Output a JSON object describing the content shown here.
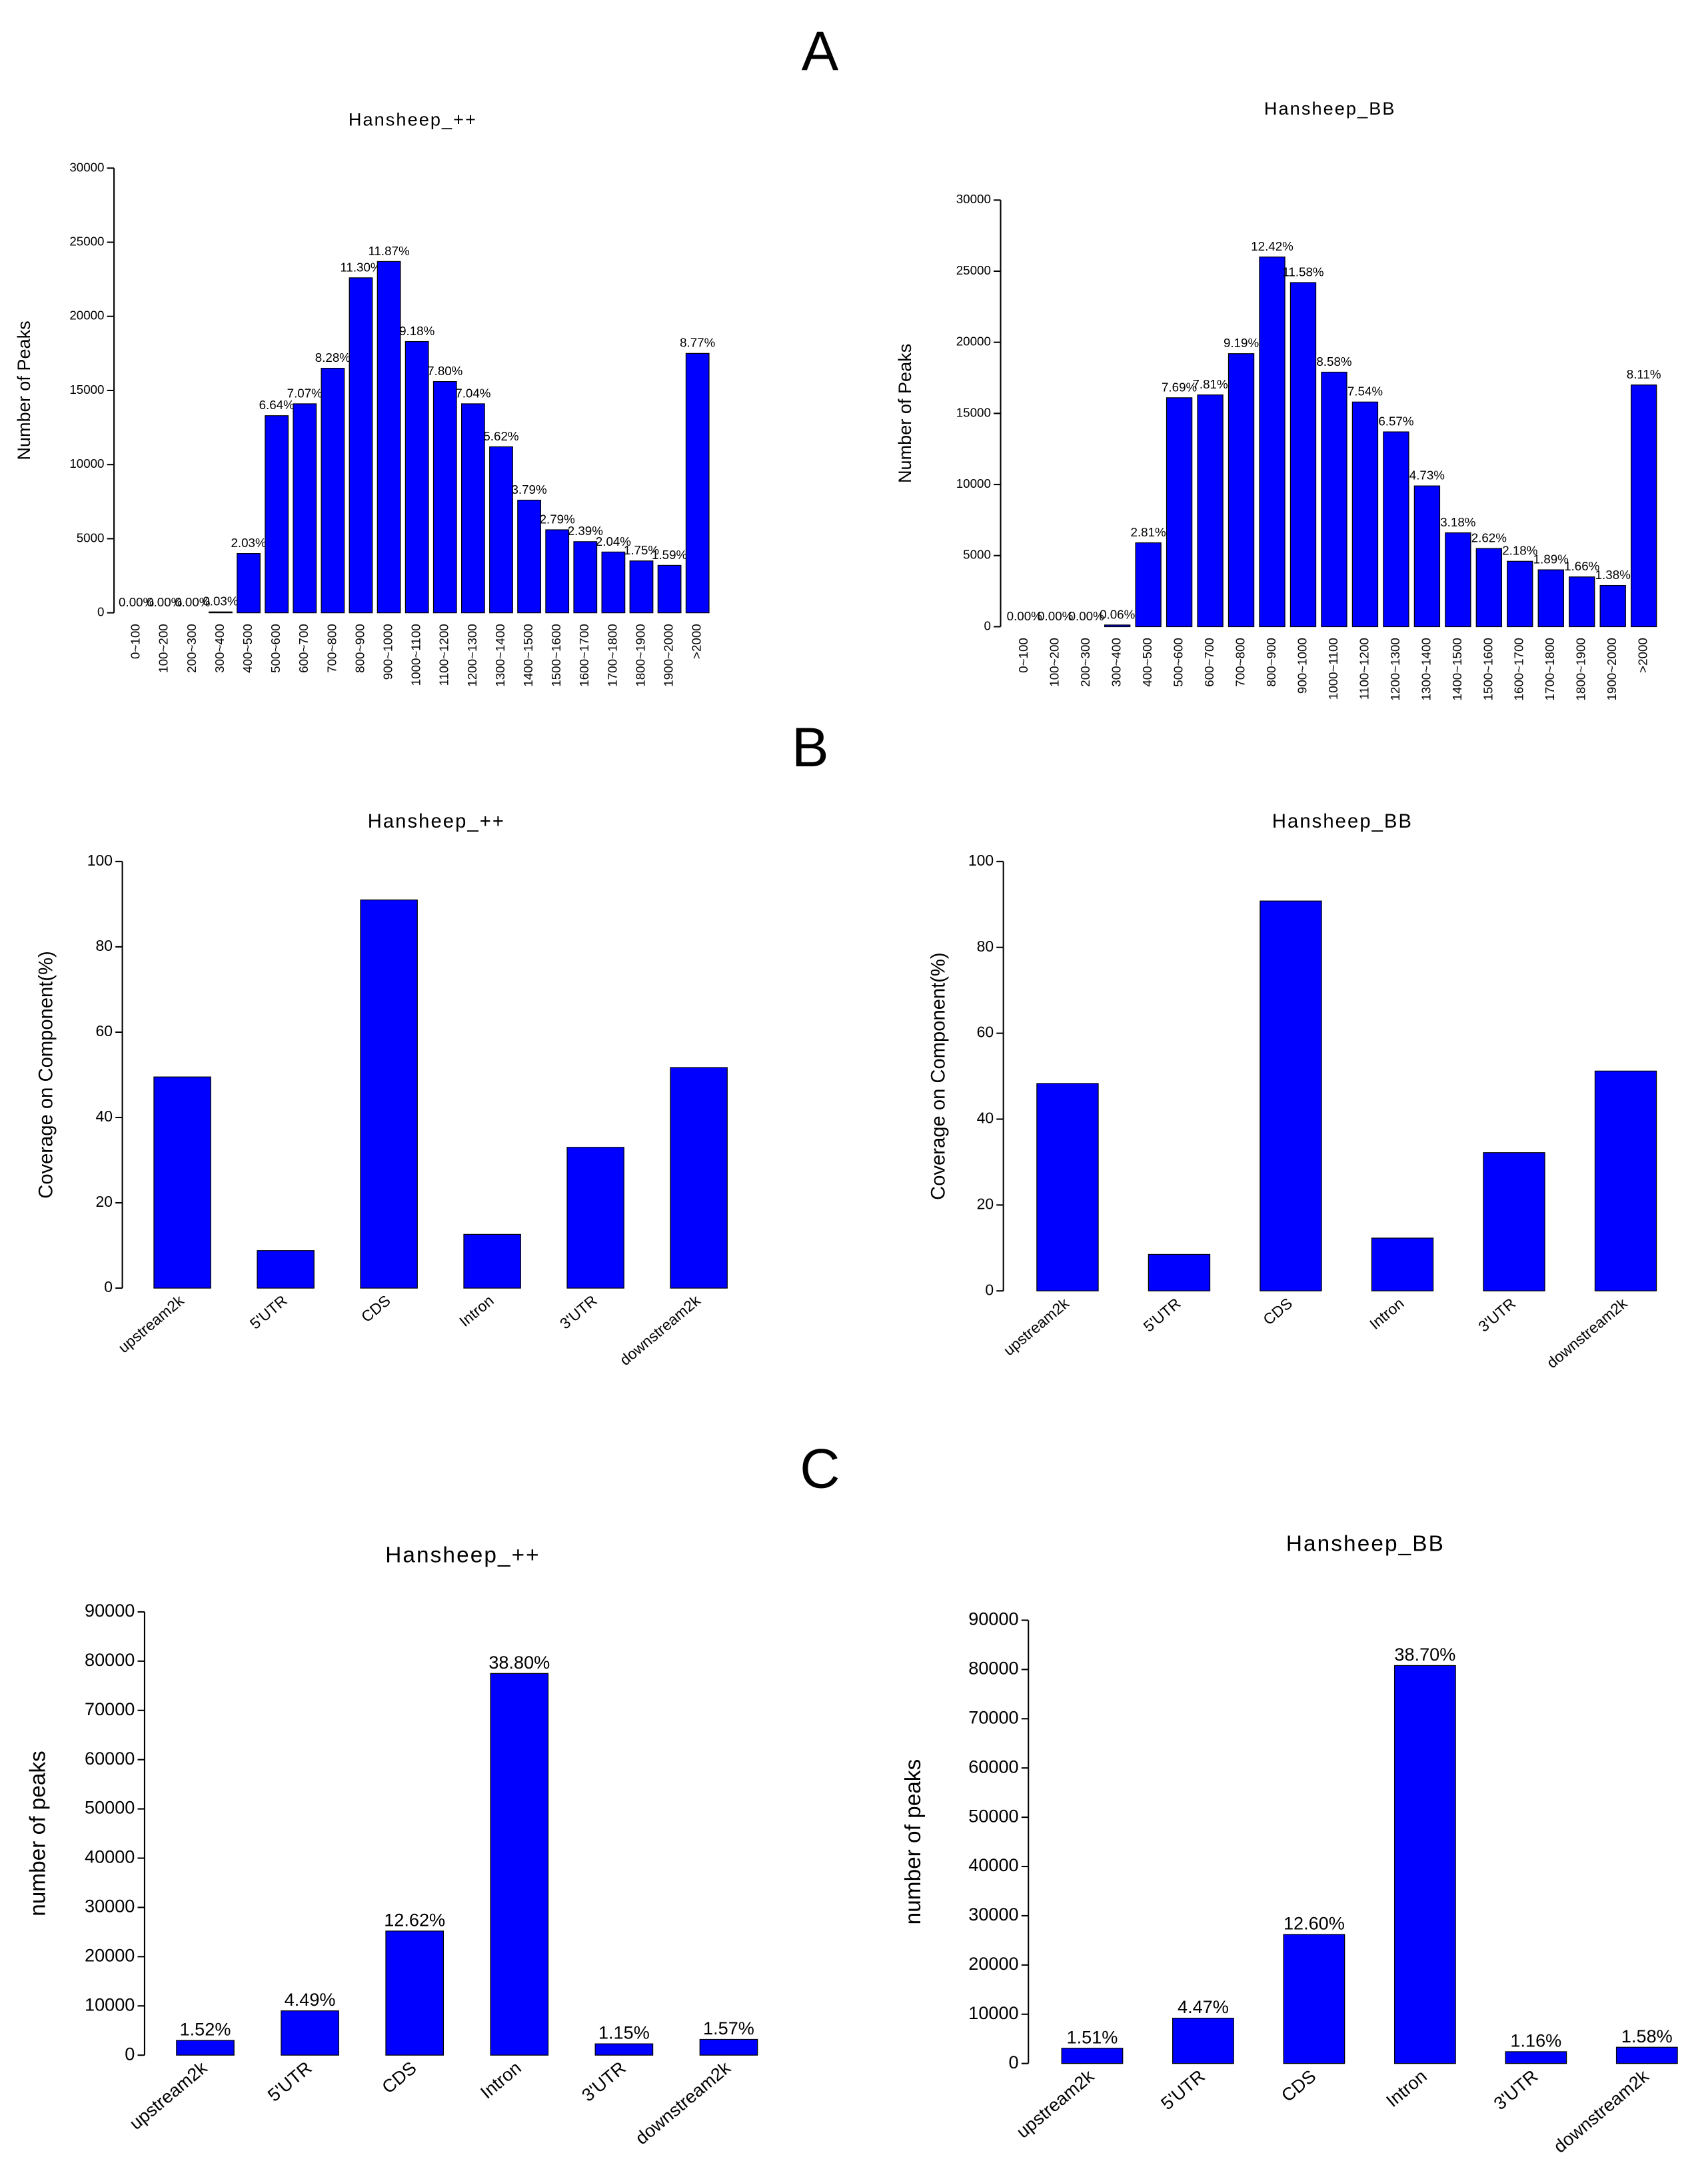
{
  "panel_labels": [
    "A",
    "B",
    "C"
  ],
  "chart_data": [
    {
      "type": "bar",
      "title": "Hansheep_++",
      "y_label": "Number of Peaks",
      "categories": [
        "0~100",
        "100~200",
        "200~300",
        "300~400",
        "400~500",
        "500~600",
        "600~700",
        "700~800",
        "800~900",
        "900~1000",
        "1000~1100",
        "1100~1200",
        "1200~1300",
        "1300~1400",
        "1400~1500",
        "1500~1600",
        "1600~1700",
        "1700~1800",
        "1800~1900",
        "1900~2000",
        ">2000"
      ],
      "values": [
        0,
        0,
        0,
        60,
        4000,
        13300,
        14100,
        16500,
        22600,
        23700,
        18300,
        15600,
        14100,
        11200,
        7600,
        5600,
        4800,
        4100,
        3500,
        3200,
        17500
      ],
      "bar_labels": [
        "0.00%",
        "0.00%",
        "0.00%",
        "0.03%",
        "2.03%",
        "6.64%",
        "7.07%",
        "8.28%",
        "11.30%",
        "11.87%",
        "9.18%",
        "7.80%",
        "7.04%",
        "5.62%",
        "3.79%",
        "2.79%",
        "2.39%",
        "2.04%",
        "1.75%",
        "1.59%",
        "8.77%"
      ],
      "color": "#0000ff",
      "ylim": [
        0,
        30000
      ],
      "yticks": [
        0,
        5000,
        10000,
        15000,
        20000,
        25000,
        30000
      ]
    },
    {
      "type": "bar",
      "title": "Hansheep_BB",
      "y_label": "Number of Peaks",
      "categories": [
        "0~100",
        "100~200",
        "200~300",
        "300~400",
        "400~500",
        "500~600",
        "600~700",
        "700~800",
        "800~900",
        "900~1000",
        "1000~1100",
        "1100~1200",
        "1200~1300",
        "1300~1400",
        "1400~1500",
        "1500~1600",
        "1600~1700",
        "1700~1800",
        "1800~1900",
        "1900~2000",
        ">2000"
      ],
      "values": [
        0,
        0,
        0,
        120,
        5900,
        16100,
        16300,
        19200,
        26000,
        24200,
        17900,
        15800,
        13700,
        9900,
        6600,
        5500,
        4600,
        4000,
        3500,
        2900,
        17000
      ],
      "bar_labels": [
        "0.00%",
        "0.00%",
        "0.00%",
        "0.06%",
        "2.81%",
        "7.69%",
        "7.81%",
        "9.19%",
        "12.42%",
        "11.58%",
        "8.58%",
        "7.54%",
        "6.57%",
        "4.73%",
        "3.18%",
        "2.62%",
        "2.18%",
        "1.89%",
        "1.66%",
        "1.38%",
        "8.11%"
      ],
      "color": "#0000ff",
      "ylim": [
        0,
        30000
      ],
      "yticks": [
        0,
        5000,
        10000,
        15000,
        20000,
        25000,
        30000
      ]
    },
    {
      "type": "bar",
      "title": "Hansheep_++",
      "y_label": "Coverage on Component(%)",
      "categories": [
        "upstream2k",
        "5'UTR",
        "CDS",
        "Intron",
        "3'UTR",
        "downstream2k"
      ],
      "values": [
        49.5,
        8.8,
        91,
        12.6,
        33,
        51.7
      ],
      "color": "#0000ff",
      "ylim": [
        0,
        100
      ],
      "yticks": [
        0,
        20,
        40,
        60,
        80,
        100
      ]
    },
    {
      "type": "bar",
      "title": "Hansheep_BB",
      "y_label": "Coverage on Component(%)",
      "categories": [
        "upstream2k",
        "5'UTR",
        "CDS",
        "Intron",
        "3'UTR",
        "downstream2k"
      ],
      "values": [
        48.3,
        8.5,
        90.8,
        12.3,
        32.2,
        51.2
      ],
      "color": "#0000ff",
      "ylim": [
        0,
        100
      ],
      "yticks": [
        0,
        20,
        40,
        60,
        80,
        100
      ]
    },
    {
      "type": "bar",
      "title": "Hansheep_++",
      "y_label": "number of peaks",
      "categories": [
        "upstream2k",
        "5'UTR",
        "CDS",
        "Intron",
        "3'UTR",
        "downstream2k"
      ],
      "values": [
        3000,
        9000,
        25200,
        77500,
        2300,
        3200
      ],
      "bar_labels": [
        "1.52%",
        "4.49%",
        "12.62%",
        "38.80%",
        "1.15%",
        "1.57%"
      ],
      "color": "#0000ff",
      "ylim": [
        0,
        90000
      ],
      "yticks": [
        0,
        10000,
        20000,
        30000,
        40000,
        50000,
        60000,
        70000,
        80000,
        90000
      ]
    },
    {
      "type": "bar",
      "title": "Hansheep_BB",
      "y_label": "number of peaks",
      "categories": [
        "upstream2k",
        "5'UTR",
        "CDS",
        "Intron",
        "3'UTR",
        "downstream2k"
      ],
      "values": [
        3100,
        9200,
        26200,
        80800,
        2400,
        3300
      ],
      "bar_labels": [
        "1.51%",
        "4.47%",
        "12.60%",
        "38.70%",
        "1.16%",
        "1.58%"
      ],
      "color": "#0000ff",
      "ylim": [
        0,
        90000
      ],
      "yticks": [
        0,
        10000,
        20000,
        30000,
        40000,
        50000,
        60000,
        70000,
        80000,
        90000
      ]
    }
  ]
}
